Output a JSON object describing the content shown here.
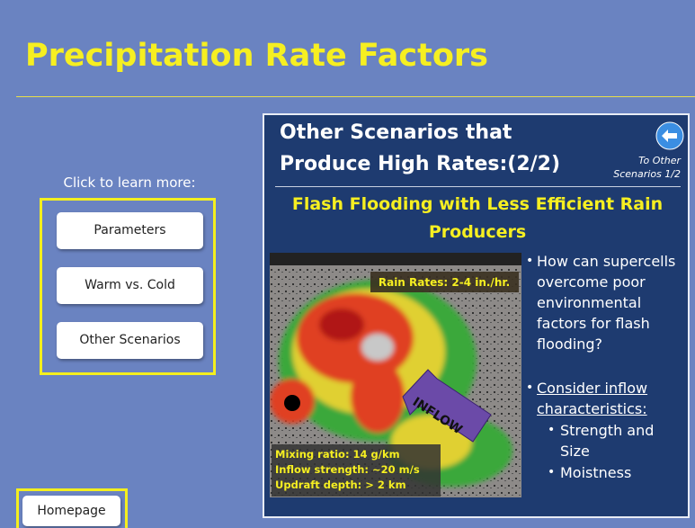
{
  "header": {
    "title": "Precipitation Rate Factors"
  },
  "menu": {
    "prompt": "Click to learn more:",
    "buttons": [
      "Parameters",
      "Warm vs. Cold",
      "Other Scenarios"
    ]
  },
  "home_button": "Homepage",
  "panel": {
    "heading_lines": [
      "Other Scenarios that",
      "Produce High Rates:(2/2)"
    ],
    "back_link_lines": [
      "To Other",
      "Scenarios 1/2"
    ],
    "subheading_lines": [
      "Flash Flooding with Less Efficient Rain",
      "Producers"
    ],
    "image": {
      "rain_rates": "Rain Rates: 2-4 in./hr.",
      "arrow_label": "INFLOW",
      "stats": [
        "Mixing ratio: 14 g/km",
        "Inflow strength: ~20 m/s",
        "Updraft depth: > 2 km"
      ]
    },
    "bullets": [
      {
        "lines": [
          "How can supercells",
          "overcome poor",
          "environmental",
          "factors for flash",
          "flooding?"
        ]
      },
      {
        "lines": [
          "Consider inflow",
          "characteristics:"
        ],
        "sub_bullets": [
          {
            "lines": [
              "Strength and",
              "Size"
            ]
          },
          {
            "lines": [
              "Moistness"
            ]
          }
        ]
      }
    ]
  }
}
